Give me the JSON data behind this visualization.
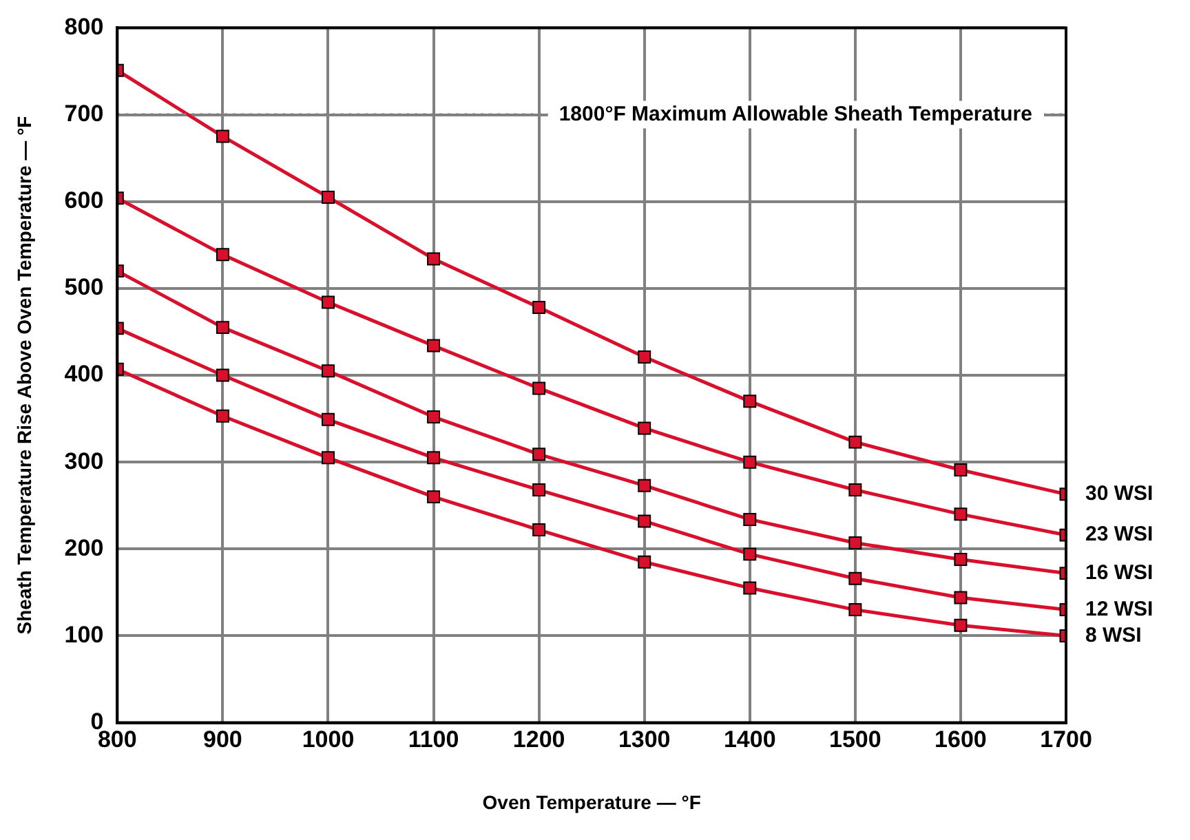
{
  "chart_data": {
    "type": "line",
    "xlabel": "Oven Temperature — °F",
    "ylabel": "Sheath Temperature Rise Above Oven Temperature — °F",
    "x": [
      800,
      900,
      1000,
      1100,
      1200,
      1300,
      1400,
      1500,
      1600,
      1700
    ],
    "xlim": [
      800,
      1700
    ],
    "xticks": [
      800,
      900,
      1000,
      1100,
      1200,
      1300,
      1400,
      1500,
      1600,
      1700
    ],
    "ylim": [
      0,
      800
    ],
    "yticks": [
      0,
      100,
      200,
      300,
      400,
      500,
      600,
      700,
      800
    ],
    "grid": true,
    "legend": false,
    "marker": "square",
    "line_style": "solid",
    "ref_lines": [
      {
        "axis": "y",
        "value": 700,
        "label": "1800°F Maximum Allowable Sheath Temperature",
        "color": "#808080",
        "line_style": "dotted"
      }
    ],
    "series": [
      {
        "name": "30 WSI",
        "color": "#d8102c",
        "values": [
          751,
          675,
          605,
          534,
          478,
          421,
          370,
          323,
          291,
          263
        ]
      },
      {
        "name": "23 WSI",
        "color": "#d8102c",
        "values": [
          604,
          539,
          484,
          434,
          385,
          339,
          300,
          268,
          240,
          216
        ]
      },
      {
        "name": "16 WSI",
        "color": "#d8102c",
        "values": [
          520,
          455,
          405,
          352,
          309,
          273,
          234,
          207,
          188,
          172
        ]
      },
      {
        "name": "12 WSI",
        "color": "#d8102c",
        "values": [
          454,
          400,
          349,
          305,
          268,
          232,
          194,
          166,
          144,
          130
        ]
      },
      {
        "name": "8 WSI",
        "color": "#d8102c",
        "values": [
          407,
          353,
          305,
          260,
          222,
          185,
          155,
          130,
          112,
          100
        ]
      }
    ]
  }
}
